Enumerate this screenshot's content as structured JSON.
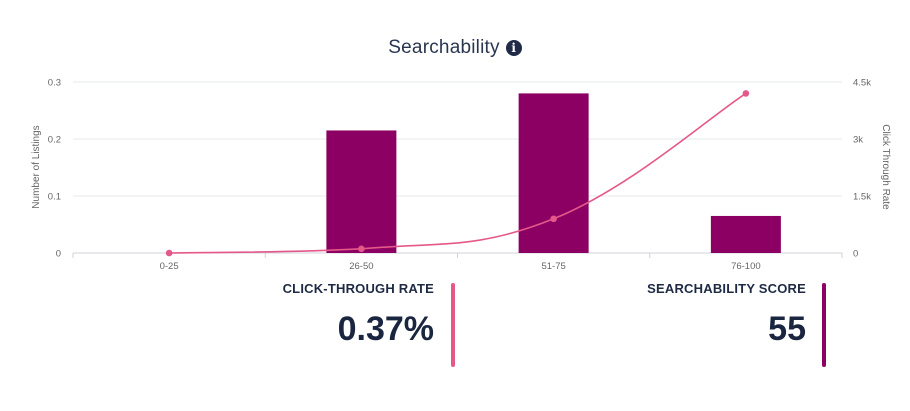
{
  "chart_data": {
    "type": "bar",
    "title": "Searchability",
    "categories": [
      "0-25",
      "26-50",
      "51-75",
      "76-100"
    ],
    "series": [
      {
        "name": "Number of Listings",
        "type": "bar",
        "axis": "left",
        "color": "#8b0062",
        "values": [
          0,
          0.215,
          0.28,
          0.065
        ]
      },
      {
        "name": "Click Through Rate",
        "type": "line",
        "axis": "right",
        "color": "#e4588a",
        "values": [
          0,
          110,
          900,
          4200
        ]
      }
    ],
    "ylabel": "Number of Listings",
    "ylim": [
      0,
      0.3
    ],
    "yticks": [
      "0",
      "0.1",
      "0.2",
      "0.3"
    ],
    "y2label": "Click Through Rate",
    "y2lim": [
      0,
      4500
    ],
    "y2ticks": [
      "0",
      "1.5k",
      "3k",
      "4.5k"
    ],
    "grid": true,
    "legend": "none"
  },
  "stats": {
    "ctr_label": "CLICK-THROUGH RATE",
    "ctr_value": "0.37%",
    "ctr_color": "#e4588a",
    "score_label": "SEARCHABILITY SCORE",
    "score_value": "55",
    "score_color": "#8b0062"
  }
}
